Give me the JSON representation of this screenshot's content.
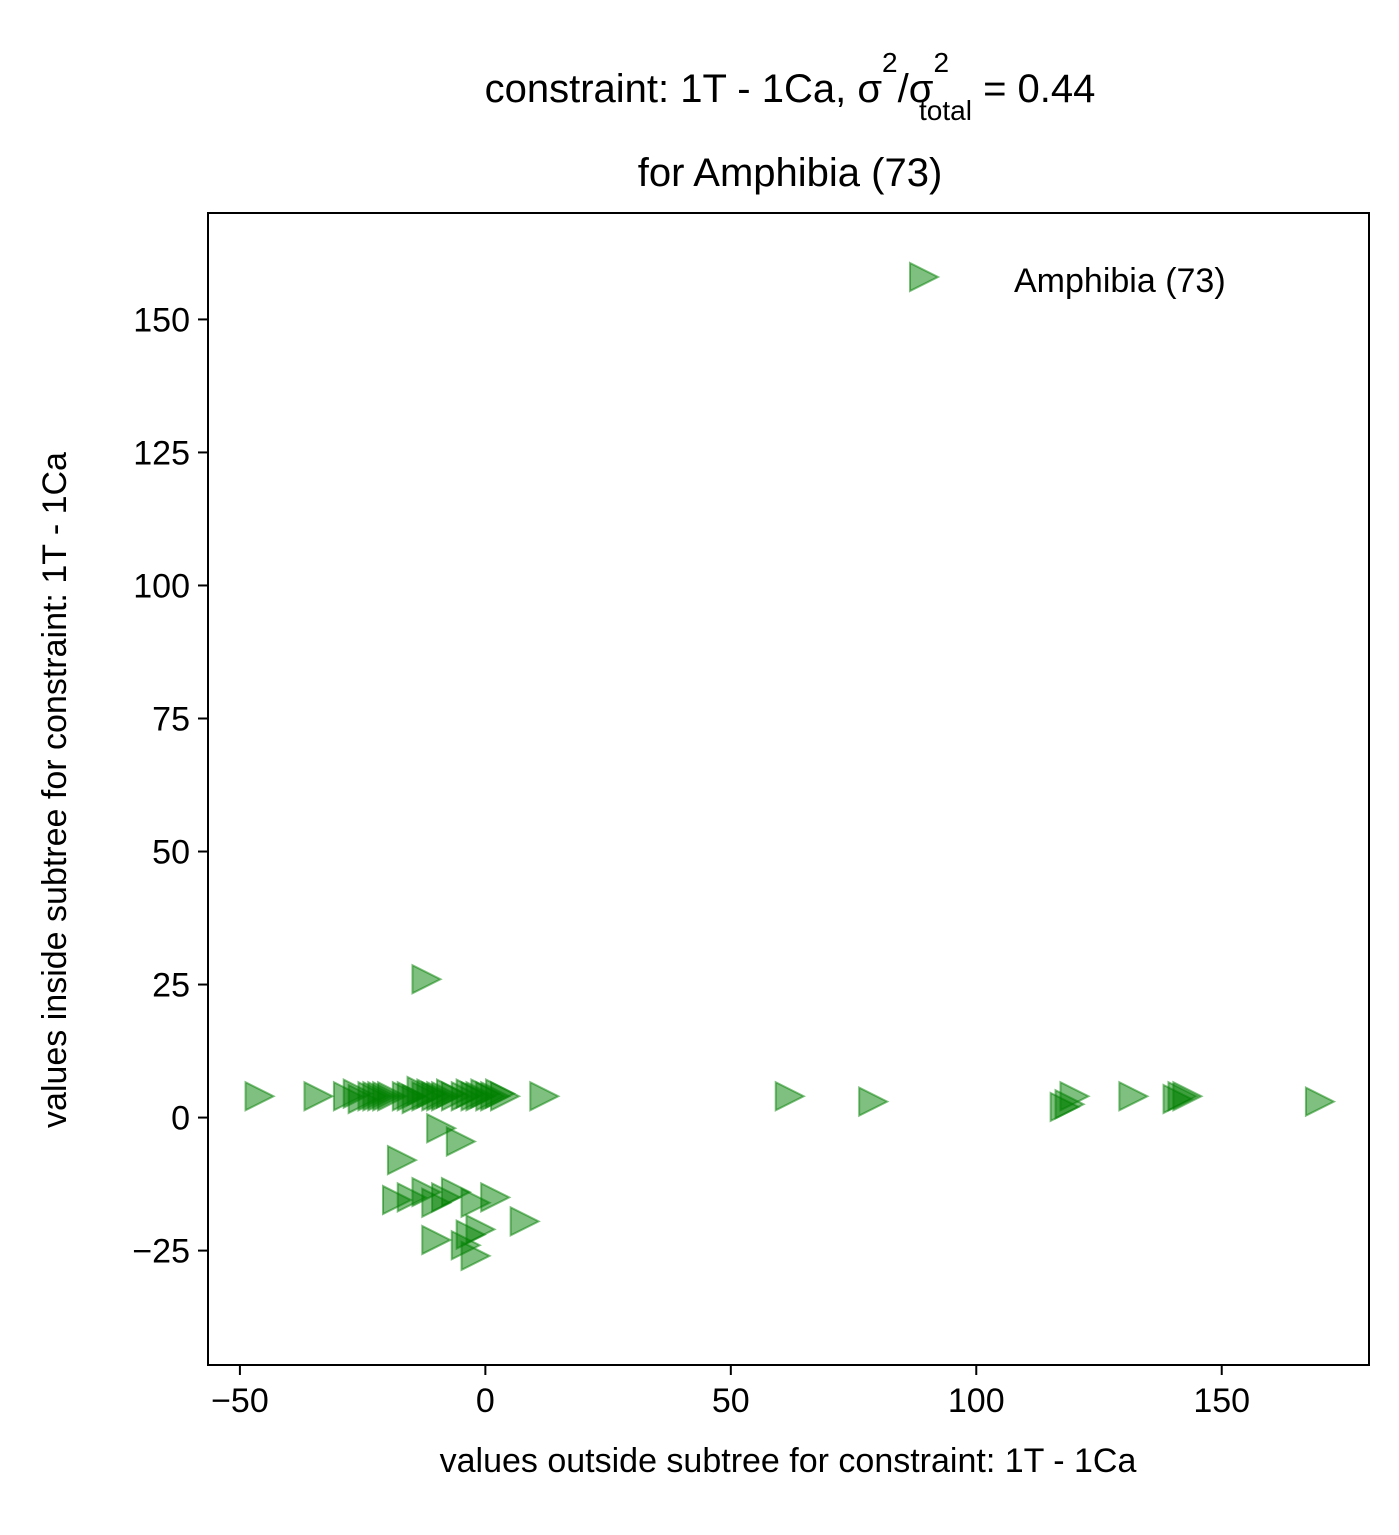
{
  "chart_data": {
    "type": "scatter",
    "title_parts": {
      "main": "constraint: 1T - 1Ca, σ",
      "sup1": "2",
      "mid": "/σ",
      "sup2": "2",
      "sub": "total",
      "tail": " =  0.44",
      "line2": "for Amphibia (73)"
    },
    "xlabel": "values outside subtree for constraint: 1T - 1Ca",
    "ylabel": "values inside subtree for constraint: 1T - 1Ca",
    "xlim": [
      -56.5,
      180
    ],
    "ylim": [
      -46.5,
      170
    ],
    "xticks": [
      -50,
      0,
      50,
      100,
      150
    ],
    "xtick_labels": [
      "−50",
      "0",
      "50",
      "100",
      "150"
    ],
    "yticks": [
      -25,
      0,
      25,
      50,
      75,
      100,
      125,
      150
    ],
    "ytick_labels": [
      "−25",
      "0",
      "25",
      "50",
      "75",
      "100",
      "125",
      "150"
    ],
    "grid": false,
    "legend_position": "top-right",
    "marker": "triangle-right",
    "color": "#008000",
    "series": [
      {
        "name": "Amphibia (73)",
        "points": [
          [
            -46,
            4
          ],
          [
            -34,
            4
          ],
          [
            -28,
            4
          ],
          [
            -26,
            4.5
          ],
          [
            -25,
            3.5
          ],
          [
            -23,
            4
          ],
          [
            -22,
            4
          ],
          [
            -21,
            4
          ],
          [
            -20,
            4
          ],
          [
            -19,
            4
          ],
          [
            -16,
            4
          ],
          [
            -15,
            4
          ],
          [
            -14,
            3.5
          ],
          [
            -13,
            5
          ],
          [
            -12,
            4
          ],
          [
            -11,
            4.5
          ],
          [
            -10,
            4
          ],
          [
            -9,
            4
          ],
          [
            -8,
            4
          ],
          [
            -7,
            4.5
          ],
          [
            -6,
            4
          ],
          [
            -4,
            4
          ],
          [
            -3,
            4.5
          ],
          [
            -2,
            4
          ],
          [
            -1,
            4
          ],
          [
            0,
            4.5
          ],
          [
            1,
            4
          ],
          [
            2,
            4
          ],
          [
            3,
            4.5
          ],
          [
            4,
            4
          ],
          [
            12,
            4
          ],
          [
            62,
            4
          ],
          [
            79,
            3
          ],
          [
            118,
            2
          ],
          [
            119,
            2.5
          ],
          [
            120,
            4
          ],
          [
            132,
            4
          ],
          [
            141,
            3.5
          ],
          [
            142,
            4
          ],
          [
            143,
            4
          ],
          [
            170,
            3
          ],
          [
            -12,
            26
          ],
          [
            -9,
            -2
          ],
          [
            -5,
            -4.5
          ],
          [
            -17,
            -8
          ],
          [
            -18,
            -15.5
          ],
          [
            -15,
            -15
          ],
          [
            -12,
            -14
          ],
          [
            -10,
            -16
          ],
          [
            -8,
            -15
          ],
          [
            -6,
            -14
          ],
          [
            2,
            -15
          ],
          [
            -2,
            -16
          ],
          [
            8,
            -19.5
          ],
          [
            -1,
            -21
          ],
          [
            -10,
            -23
          ],
          [
            -4,
            -24
          ],
          [
            -2,
            -26
          ],
          [
            -3,
            -22
          ]
        ]
      }
    ]
  }
}
